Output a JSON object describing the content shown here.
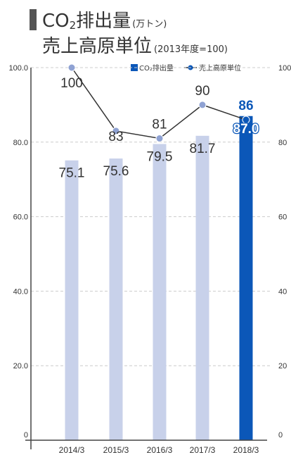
{
  "title": {
    "line1_main": "CO",
    "line1_sub": "2",
    "line1_rest": "排出量",
    "line1_unit": "(万トン)",
    "line2_main": "売上高原単位",
    "line2_unit": "(2013年度=100)"
  },
  "legend": {
    "bar_label": "CO₂排出量",
    "line_label": "売上高原単位"
  },
  "colors": {
    "bar": "#c8d1ea",
    "bar_highlight": "#0b57b8",
    "line": "#333333",
    "marker": "#8fa2d3",
    "marker_highlight": "#0b57b8",
    "grid": "#cccccc"
  },
  "chart_data": {
    "type": "bar",
    "categories": [
      "2014/3",
      "2015/3",
      "2016/3",
      "2017/3",
      "2018/3"
    ],
    "series": [
      {
        "name": "CO₂排出量",
        "type": "bar",
        "axis": "left",
        "values": [
          75.1,
          75.6,
          79.5,
          81.7,
          87.0
        ],
        "labels": [
          "75.1",
          "75.6",
          "79.5",
          "81.7",
          "87.0"
        ]
      },
      {
        "name": "売上高原単位",
        "type": "line",
        "axis": "right",
        "values": [
          100,
          83,
          81,
          90,
          86
        ],
        "labels": [
          "100",
          "83",
          "81",
          "90",
          "86"
        ]
      }
    ],
    "highlight_index": 4,
    "left_axis": {
      "ticks": [
        "0",
        "20.0",
        "40.0",
        "60.0",
        "80.0",
        "100.0"
      ],
      "ylim": [
        0,
        100
      ]
    },
    "right_axis": {
      "ticks": [
        "0",
        "20",
        "40",
        "60",
        "80",
        "100"
      ],
      "ylim": [
        0,
        100
      ]
    },
    "grid": true,
    "legend_position": "top-right"
  }
}
